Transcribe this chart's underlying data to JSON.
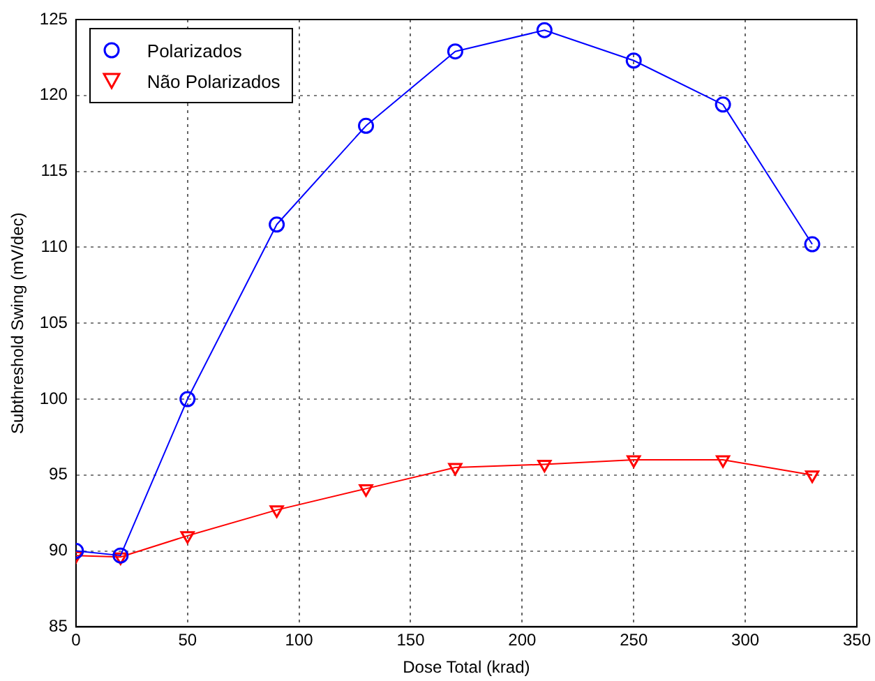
{
  "chart_data": {
    "type": "line",
    "xlabel": "Dose Total (krad)",
    "ylabel": "Subthreshold Swing (mV/dec)",
    "x": [
      0,
      20,
      50,
      90,
      130,
      170,
      210,
      250,
      290,
      330
    ],
    "series": [
      {
        "name": "Polarizados",
        "color": "#0000ff",
        "marker": "circle",
        "values": [
          90,
          89.7,
          100,
          111.5,
          118,
          122.9,
          124.3,
          122.3,
          119.4,
          110.2
        ]
      },
      {
        "name": "Não Polarizados",
        "color": "#ff0000",
        "marker": "triangle",
        "values": [
          89.7,
          89.6,
          91,
          92.7,
          94.1,
          95.5,
          95.7,
          96,
          96,
          95
        ]
      }
    ],
    "xlim": [
      0,
      350
    ],
    "xticks": [
      0,
      50,
      100,
      150,
      200,
      250,
      300,
      350
    ],
    "ylim": [
      85,
      125
    ],
    "yticks": [
      85,
      90,
      95,
      100,
      105,
      110,
      115,
      120,
      125
    ],
    "grid": true,
    "legend": "top left",
    "line_style": "solid"
  }
}
